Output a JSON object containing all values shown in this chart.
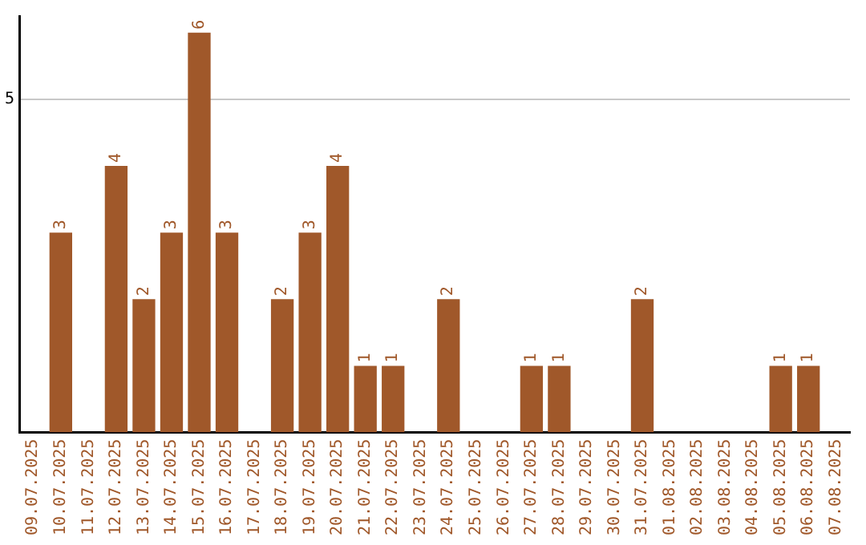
{
  "chart_data": {
    "type": "bar",
    "categories": [
      "09.07.2025",
      "10.07.2025",
      "11.07.2025",
      "12.07.2025",
      "13.07.2025",
      "14.07.2025",
      "15.07.2025",
      "16.07.2025",
      "17.07.2025",
      "18.07.2025",
      "19.07.2025",
      "20.07.2025",
      "21.07.2025",
      "22.07.2025",
      "23.07.2025",
      "24.07.2025",
      "25.07.2025",
      "26.07.2025",
      "27.07.2025",
      "28.07.2025",
      "29.07.2025",
      "30.07.2025",
      "31.07.2025",
      "01.08.2025",
      "02.08.2025",
      "03.08.2025",
      "04.08.2025",
      "05.08.2025",
      "06.08.2025",
      "07.08.2025"
    ],
    "values": [
      0,
      3,
      0,
      4,
      2,
      3,
      6,
      3,
      0,
      2,
      3,
      4,
      1,
      1,
      0,
      2,
      0,
      0,
      1,
      1,
      0,
      0,
      2,
      0,
      0,
      0,
      0,
      1,
      1,
      0
    ],
    "value_labels": [
      null,
      "3",
      null,
      "4",
      "2",
      "3",
      "6",
      "3",
      null,
      "2",
      "3",
      "4",
      "1",
      "1",
      null,
      "2",
      null,
      null,
      "1",
      "1",
      null,
      null,
      "2",
      null,
      null,
      null,
      null,
      "1",
      "1",
      null
    ],
    "color": "#a0582a",
    "ylim": [
      0,
      6.25
    ],
    "yticks": [
      5
    ],
    "grid": "y",
    "legend": false
  }
}
